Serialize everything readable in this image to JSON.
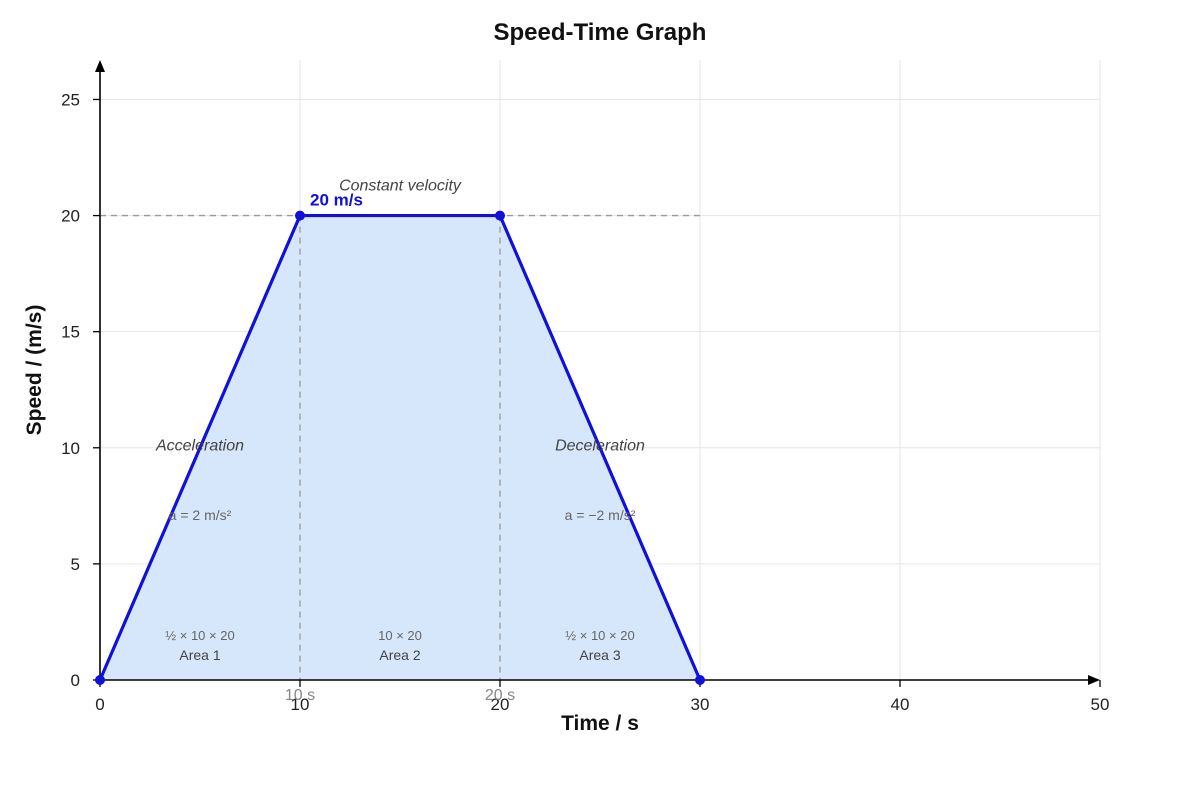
{
  "chart_data": {
    "type": "area",
    "title": "Speed-Time Graph",
    "xlabel": "Time / s",
    "ylabel": "Speed / (m/s)",
    "xlim": [
      0,
      50
    ],
    "ylim": [
      0,
      26.7
    ],
    "xticks": [
      0,
      10,
      20,
      30,
      40,
      50
    ],
    "yticks": [
      0,
      5,
      10,
      15,
      20,
      25
    ],
    "grid": true,
    "series": [
      {
        "x": [
          0,
          10,
          20,
          30
        ],
        "y": [
          0,
          20,
          20,
          0
        ],
        "line_color": "#1010d8",
        "fill_color": "#d6e6fb"
      }
    ],
    "annotations": {
      "speed_label": "20 m/s",
      "speed_value": 20,
      "time_markers": [
        {
          "x": 10,
          "label": "10 s"
        },
        {
          "x": 20,
          "label": "20 s"
        }
      ],
      "phases": [
        {
          "label": "Acceleration",
          "x": 5,
          "y": 10.1
        },
        {
          "label": "Constant velocity",
          "x": 15,
          "y": 21.3
        },
        {
          "label": "Deceleration",
          "x": 25,
          "y": 10.1
        }
      ],
      "accelerations": [
        {
          "label": "a = 2 m/s²",
          "x": 5,
          "y": 7.1
        },
        {
          "label": "a = −2 m/s²",
          "x": 25,
          "y": 7.1
        }
      ],
      "areas": [
        {
          "calc": "½ × 10 × 20",
          "name": "Area 1",
          "x": 5
        },
        {
          "calc": "10 × 20",
          "name": "Area 2",
          "x": 15
        },
        {
          "calc": "½ × 10 × 20",
          "name": "Area 3",
          "x": 25
        }
      ]
    }
  }
}
